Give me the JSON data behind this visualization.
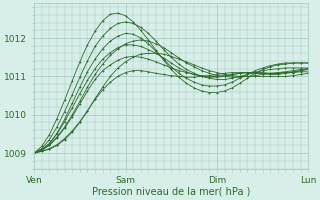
{
  "xlabel": "Pression niveau de la mer( hPa )",
  "ylabel": "",
  "bg_color": "#d8eee8",
  "grid_color": "#aaccc4",
  "line_color": "#2d6a2d",
  "ylim": [
    1008.6,
    1012.9
  ],
  "xlim": [
    0,
    3
  ],
  "day_labels": [
    "Ven",
    "Sam",
    "Dim",
    "Lun"
  ],
  "day_positions": [
    0,
    1,
    2,
    3
  ],
  "yticks": [
    1009,
    1010,
    1011,
    1012
  ],
  "series": [
    [
      1009.0,
      1009.05,
      1009.1,
      1009.2,
      1009.35,
      1009.55,
      1009.8,
      1010.1,
      1010.4,
      1010.65,
      1010.85,
      1011.0,
      1011.1,
      1011.15,
      1011.15,
      1011.12,
      1011.08,
      1011.05,
      1011.02,
      1011.0,
      1010.98,
      1010.98,
      1011.0,
      1011.02,
      1011.05,
      1011.08,
      1011.1,
      1011.1,
      1011.1,
      1011.08,
      1011.07,
      1011.07,
      1011.08,
      1011.1,
      1011.1,
      1011.12,
      1011.12
    ],
    [
      1009.0,
      1009.08,
      1009.2,
      1009.4,
      1009.65,
      1009.95,
      1010.28,
      1010.62,
      1010.92,
      1011.15,
      1011.3,
      1011.42,
      1011.5,
      1011.52,
      1011.5,
      1011.45,
      1011.38,
      1011.3,
      1011.22,
      1011.15,
      1011.1,
      1011.05,
      1011.02,
      1011.0,
      1011.0,
      1011.02,
      1011.05,
      1011.08,
      1011.1,
      1011.1,
      1011.1,
      1011.08,
      1011.08,
      1011.1,
      1011.12,
      1011.15,
      1011.18
    ],
    [
      1009.0,
      1009.1,
      1009.25,
      1009.5,
      1009.82,
      1010.18,
      1010.55,
      1010.9,
      1011.2,
      1011.45,
      1011.62,
      1011.75,
      1011.82,
      1011.82,
      1011.78,
      1011.7,
      1011.6,
      1011.48,
      1011.35,
      1011.22,
      1011.12,
      1011.05,
      1011.0,
      1010.98,
      1010.98,
      1011.0,
      1011.05,
      1011.08,
      1011.1,
      1011.1,
      1011.08,
      1011.05,
      1011.05,
      1011.08,
      1011.1,
      1011.15,
      1011.2
    ],
    [
      1009.0,
      1009.05,
      1009.12,
      1009.22,
      1009.38,
      1009.58,
      1009.82,
      1010.1,
      1010.42,
      1010.72,
      1011.0,
      1011.22,
      1011.38,
      1011.5,
      1011.58,
      1011.6,
      1011.6,
      1011.58,
      1011.52,
      1011.45,
      1011.38,
      1011.3,
      1011.22,
      1011.15,
      1011.1,
      1011.05,
      1011.02,
      1011.0,
      1011.0,
      1011.0,
      1011.0,
      1011.0,
      1011.0,
      1011.0,
      1011.02,
      1011.05,
      1011.08
    ],
    [
      1009.0,
      1009.08,
      1009.22,
      1009.42,
      1009.68,
      1010.0,
      1010.35,
      1010.72,
      1011.05,
      1011.32,
      1011.55,
      1011.72,
      1011.85,
      1011.92,
      1011.95,
      1011.92,
      1011.85,
      1011.75,
      1011.62,
      1011.48,
      1011.35,
      1011.25,
      1011.15,
      1011.08,
      1011.02,
      1011.0,
      1010.98,
      1010.98,
      1011.0,
      1011.02,
      1011.05,
      1011.08,
      1011.1,
      1011.12,
      1011.15,
      1011.18,
      1011.2
    ],
    [
      1009.0,
      1009.12,
      1009.35,
      1009.68,
      1010.08,
      1010.52,
      1010.98,
      1011.4,
      1011.78,
      1012.05,
      1012.25,
      1012.38,
      1012.42,
      1012.38,
      1012.28,
      1012.12,
      1011.92,
      1011.7,
      1011.5,
      1011.32,
      1011.18,
      1011.08,
      1011.0,
      1010.95,
      1010.92,
      1010.92,
      1010.95,
      1011.0,
      1011.05,
      1011.1,
      1011.15,
      1011.18,
      1011.2,
      1011.22,
      1011.22,
      1011.22,
      1011.22
    ],
    [
      1009.0,
      1009.08,
      1009.25,
      1009.52,
      1009.88,
      1010.3,
      1010.72,
      1011.12,
      1011.45,
      1011.72,
      1011.92,
      1012.05,
      1012.12,
      1012.1,
      1012.0,
      1011.85,
      1011.65,
      1011.45,
      1011.25,
      1011.08,
      1010.95,
      1010.85,
      1010.78,
      1010.75,
      1010.75,
      1010.78,
      1010.85,
      1010.95,
      1011.05,
      1011.15,
      1011.22,
      1011.28,
      1011.32,
      1011.35,
      1011.35,
      1011.35,
      1011.35
    ],
    [
      1009.0,
      1009.18,
      1009.48,
      1009.9,
      1010.38,
      1010.88,
      1011.38,
      1011.82,
      1012.18,
      1012.45,
      1012.62,
      1012.65,
      1012.58,
      1012.42,
      1012.2,
      1011.95,
      1011.68,
      1011.42,
      1011.18,
      1010.98,
      1010.82,
      1010.7,
      1010.62,
      1010.58,
      1010.58,
      1010.62,
      1010.7,
      1010.82,
      1010.95,
      1011.08,
      1011.18,
      1011.25,
      1011.3,
      1011.32,
      1011.35,
      1011.35,
      1011.35
    ]
  ]
}
